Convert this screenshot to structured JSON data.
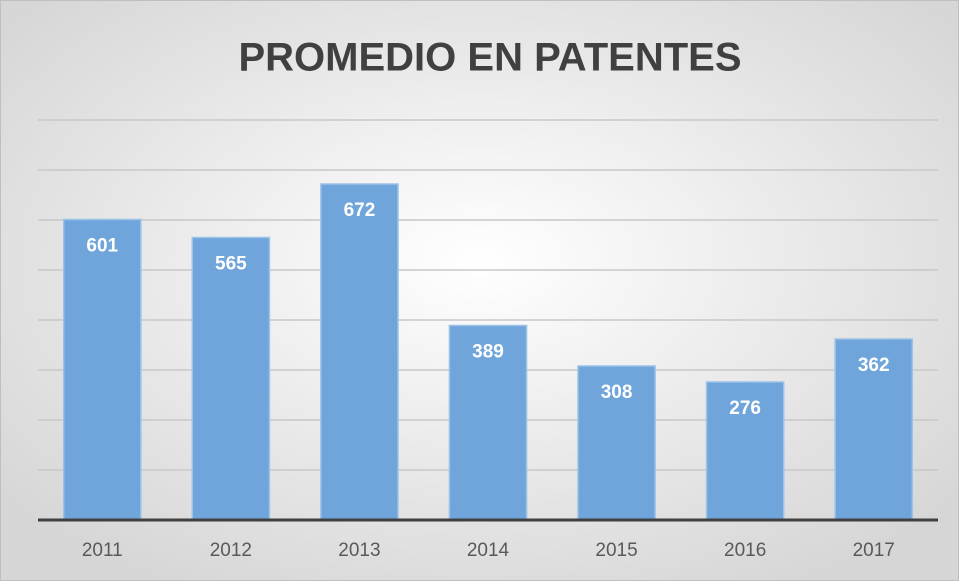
{
  "chart_data": {
    "type": "bar",
    "title": "PROMEDIO EN PATENTES",
    "categories": [
      "2011",
      "2012",
      "2013",
      "2014",
      "2015",
      "2016",
      "2017"
    ],
    "values": [
      601,
      565,
      672,
      389,
      308,
      276,
      362
    ],
    "color": "#6fa5db",
    "ylim": [
      0,
      800
    ],
    "yticks": [
      0,
      100,
      200,
      300,
      400,
      500,
      600,
      700,
      800
    ],
    "grid": true
  }
}
